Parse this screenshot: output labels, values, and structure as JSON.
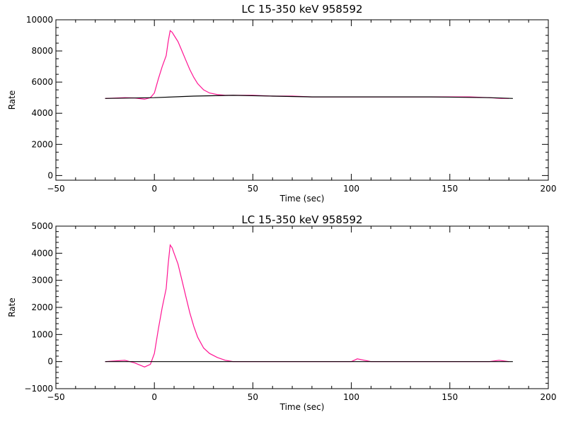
{
  "chart_data": [
    {
      "type": "line",
      "title": "LC 15-350 keV  958592",
      "xlabel": "Time (sec)",
      "ylabel": "Rate",
      "xlim": [
        -50,
        200
      ],
      "ylim": [
        -300,
        10000
      ],
      "x_ticks": [
        -50,
        0,
        50,
        100,
        150,
        200
      ],
      "x_tick_labels": [
        "−50",
        "0",
        "50",
        "100",
        "150",
        "200"
      ],
      "y_ticks": [
        0,
        2000,
        4000,
        6000,
        8000,
        10000
      ],
      "y_tick_labels": [
        "0",
        "2000",
        "4000",
        "6000",
        "8000",
        "10000"
      ],
      "grid": false,
      "colors": {
        "light_curve": "#ff1493",
        "background_fit": "#000000",
        "axes": "#000000"
      },
      "series": [
        {
          "x": [
            -25,
            -15,
            -10,
            -5,
            -2,
            0,
            2,
            4,
            6,
            7,
            8,
            9,
            10,
            12,
            14,
            16,
            18,
            20,
            22,
            25,
            28,
            32,
            36,
            40,
            50,
            60,
            70,
            80,
            90,
            100,
            110,
            120,
            130,
            140,
            150,
            160,
            170,
            176,
            180
          ],
          "y": [
            4950,
            5000,
            4980,
            4900,
            5000,
            5300,
            6200,
            7000,
            7700,
            8600,
            9300,
            9200,
            9000,
            8600,
            8000,
            7400,
            6800,
            6300,
            5900,
            5500,
            5300,
            5200,
            5150,
            5150,
            5150,
            5100,
            5100,
            5050,
            5050,
            5050,
            5050,
            5050,
            5050,
            5050,
            5050,
            5050,
            5000,
            4950,
            4950
          ]
        },
        {
          "x": [
            -25,
            0,
            20,
            40,
            60,
            80,
            100,
            120,
            140,
            160,
            170,
            182
          ],
          "y": [
            4950,
            5000,
            5100,
            5150,
            5100,
            5050,
            5050,
            5050,
            5050,
            5020,
            5000,
            4950
          ]
        }
      ]
    },
    {
      "type": "line",
      "title": "LC 15-350 keV  958592",
      "xlabel": "Time (sec)",
      "ylabel": "Rate",
      "xlim": [
        -50,
        200
      ],
      "ylim": [
        -1000,
        5000
      ],
      "x_ticks": [
        -50,
        0,
        50,
        100,
        150,
        200
      ],
      "x_tick_labels": [
        "−50",
        "0",
        "50",
        "100",
        "150",
        "200"
      ],
      "y_ticks": [
        -1000,
        0,
        1000,
        2000,
        3000,
        4000,
        5000
      ],
      "y_tick_labels": [
        "−1000",
        "0",
        "1000",
        "2000",
        "3000",
        "4000",
        "5000"
      ],
      "grid": false,
      "colors": {
        "light_curve": "#ff1493",
        "background_fit": "#000000",
        "axes": "#000000"
      },
      "series": [
        {
          "x": [
            -25,
            -15,
            -10,
            -5,
            -2,
            0,
            2,
            4,
            6,
            7,
            8,
            9,
            10,
            12,
            14,
            16,
            18,
            20,
            22,
            25,
            28,
            32,
            36,
            40,
            50,
            60,
            70,
            80,
            90,
            100,
            103,
            110,
            120,
            130,
            140,
            150,
            160,
            170,
            175,
            180
          ],
          "y": [
            0,
            50,
            -50,
            -200,
            -100,
            300,
            1200,
            2000,
            2700,
            3600,
            4300,
            4200,
            4000,
            3600,
            3000,
            2400,
            1800,
            1300,
            900,
            500,
            300,
            150,
            50,
            0,
            0,
            0,
            0,
            0,
            0,
            0,
            100,
            0,
            0,
            0,
            0,
            0,
            0,
            0,
            50,
            0
          ]
        },
        {
          "x": [
            -25,
            182
          ],
          "y": [
            0,
            0
          ]
        }
      ]
    }
  ]
}
